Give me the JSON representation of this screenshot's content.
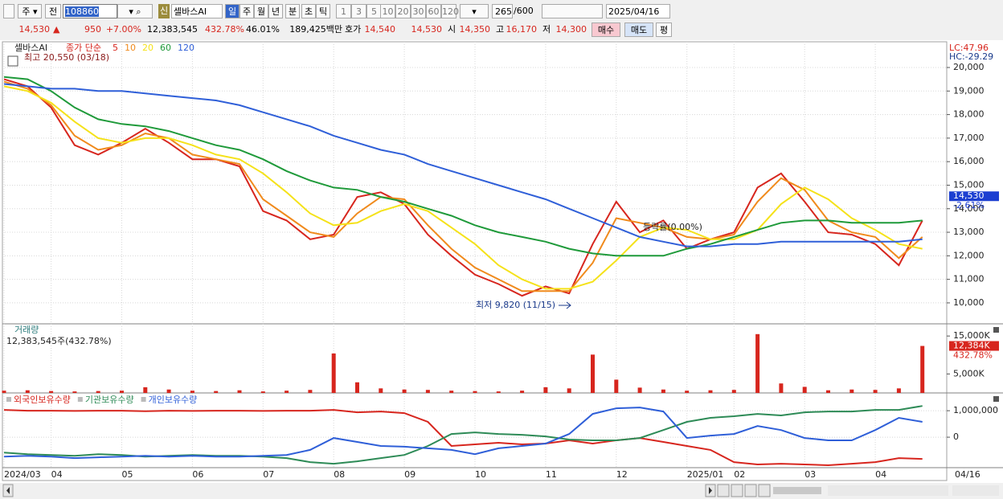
{
  "toolbar": {
    "market": "주",
    "scope": "전",
    "code": "108860",
    "flag": "신",
    "name": "셀바스AI",
    "periods": [
      "일",
      "주",
      "월",
      "년",
      "분",
      "초",
      "틱"
    ],
    "intervals": [
      "1",
      "3",
      "5",
      "10",
      "20",
      "30",
      "60",
      "120"
    ],
    "count": "265",
    "max": "/600",
    "date": "2025/04/16"
  },
  "quote": {
    "price": "14,530",
    "arrow": "▲",
    "change": "950",
    "change_pct": "+7.00%",
    "volume": "12,383,545",
    "volume_ratio": "432.78%",
    "turnover": "46.01%",
    "amount": "189,425백만",
    "ask_label": "호가",
    "ask": "14,540",
    "bid": "14,530",
    "open_label": "시",
    "open": "14,350",
    "high_label": "고",
    "high": "16,170",
    "low_label": "저",
    "low": "14,300",
    "buy": "매수",
    "sell": "매도",
    "avg": "평"
  },
  "chart_data": [
    {
      "type": "line",
      "title": "셀바스AI",
      "ma_label": "종가 단순",
      "high_label": "최고 20,550 (03/18)",
      "low_label": "최저 9,820 (11/15)",
      "change_label": "등락률(0.00%)",
      "lc_label": "LC:47.96",
      "hc_label": "HC:-29.29",
      "current": {
        "value": 14530,
        "label": "14,530"
      },
      "current_change": "-2.61%",
      "ylim": [
        9110,
        20990
      ],
      "yticks": [
        {
          "value": 10000,
          "label": "10,000"
        },
        {
          "value": 11000,
          "label": "11,000"
        },
        {
          "value": 12000,
          "label": "12,000"
        },
        {
          "value": 13000,
          "label": "13,000"
        },
        {
          "value": 14000,
          "label": "14,000"
        },
        {
          "value": 15000,
          "label": "15,000"
        },
        {
          "value": 16000,
          "label": "16,000"
        },
        {
          "value": 17000,
          "label": "17,000"
        },
        {
          "value": 18000,
          "label": "18,000"
        },
        {
          "value": 19000,
          "label": "19,000"
        },
        {
          "value": 20000,
          "label": "20,000"
        }
      ],
      "grid": true,
      "series": [
        {
          "name": "5",
          "color": "#d7261e",
          "values": [
            19500,
            19200,
            18300,
            16700,
            16300,
            16800,
            17400,
            16800,
            16100,
            16100,
            15800,
            13900,
            13500,
            12700,
            12900,
            14500,
            14700,
            14200,
            12900,
            12000,
            11200,
            10800,
            10300,
            10700,
            10400,
            12500,
            14300,
            13000,
            13500,
            12300,
            12700,
            13000,
            14900,
            15500,
            14300,
            13000,
            12900,
            12500,
            11600,
            13500
          ]
        },
        {
          "name": "10",
          "color": "#f08a1c",
          "values": [
            19400,
            19100,
            18400,
            17100,
            16500,
            16700,
            17200,
            17000,
            16300,
            16100,
            15900,
            14400,
            13700,
            13000,
            12800,
            13800,
            14500,
            14400,
            13300,
            12300,
            11500,
            11000,
            10500,
            10500,
            10500,
            11700,
            13600,
            13400,
            13200,
            12800,
            12700,
            12900,
            14300,
            15300,
            14800,
            13500,
            13000,
            12800,
            11900,
            12800
          ]
        },
        {
          "name": "20",
          "color": "#f5e21a",
          "values": [
            19200,
            19000,
            18500,
            17700,
            17000,
            16800,
            17000,
            17000,
            16700,
            16300,
            16100,
            15500,
            14700,
            13800,
            13300,
            13400,
            13900,
            14200,
            13900,
            13200,
            12500,
            11600,
            11000,
            10600,
            10600,
            10900,
            11800,
            12800,
            13200,
            13100,
            12700,
            12700,
            13100,
            14200,
            14900,
            14400,
            13600,
            13100,
            12500,
            12300
          ]
        },
        {
          "name": "60",
          "color": "#1f9a3a",
          "values": [
            19600,
            19500,
            19000,
            18300,
            17800,
            17600,
            17500,
            17300,
            17000,
            16700,
            16500,
            16100,
            15600,
            15200,
            14900,
            14800,
            14500,
            14300,
            14000,
            13700,
            13300,
            13000,
            12800,
            12600,
            12300,
            12100,
            12000,
            12000,
            12000,
            12300,
            12500,
            12800,
            13100,
            13400,
            13500,
            13500,
            13400,
            13400,
            13400,
            13500
          ]
        },
        {
          "name": "120",
          "color": "#2f5fd8",
          "values": [
            19300,
            19200,
            19100,
            19100,
            19000,
            19000,
            18900,
            18800,
            18700,
            18600,
            18400,
            18100,
            17800,
            17500,
            17100,
            16800,
            16500,
            16300,
            15900,
            15600,
            15300,
            15000,
            14700,
            14400,
            14000,
            13600,
            13200,
            12800,
            12600,
            12400,
            12400,
            12500,
            12500,
            12600,
            12600,
            12600,
            12600,
            12600,
            12600,
            12700
          ]
        }
      ]
    },
    {
      "type": "bar",
      "title": "거래량",
      "info": "12,383,545주(432.78%)",
      "current": {
        "value": 12384,
        "label": "12,384K"
      },
      "current_ratio": "432.78%",
      "ylim": [
        0,
        18000
      ],
      "yticks": [
        {
          "value": 5000,
          "label": "5,000K"
        },
        {
          "value": 15000,
          "label": "15,000K"
        }
      ],
      "color": "#d7261e",
      "values": [
        600,
        700,
        500,
        400,
        500,
        600,
        1500,
        900,
        600,
        500,
        700,
        400,
        600,
        800,
        10400,
        2800,
        1200,
        900,
        800,
        600,
        500,
        400,
        600,
        1500,
        1200,
        10100,
        3500,
        1400,
        900,
        600,
        700,
        800,
        15500,
        2500,
        1600,
        700,
        900,
        800,
        1200,
        12384
      ]
    },
    {
      "type": "line",
      "end_label": "04/16",
      "categories": [
        "2024/03",
        null,
        "04",
        null,
        null,
        "05",
        null,
        null,
        "06",
        null,
        null,
        "07",
        null,
        null,
        "08",
        null,
        null,
        "09",
        null,
        null,
        "10",
        null,
        null,
        "11",
        null,
        null,
        "12",
        null,
        null,
        "2025/01",
        null,
        "02",
        null,
        null,
        "03",
        null,
        null,
        "04",
        null,
        null
      ],
      "ylim": [
        -1150000,
        1640000
      ],
      "yticks": [
        0,
        {
          "value": 1000000,
          "label": "1,000,000"
        }
      ],
      "grid": true,
      "series": [
        {
          "name": "외국인보유수량",
          "color": "#d7261e",
          "values": [
            1030000,
            1000000,
            1000000,
            990000,
            1000000,
            1000000,
            980000,
            1000000,
            990000,
            1000000,
            1000000,
            990000,
            1000000,
            1000000,
            1030000,
            940000,
            970000,
            910000,
            580000,
            -330000,
            -270000,
            -210000,
            -270000,
            -240000,
            -120000,
            -240000,
            -120000,
            -30000,
            -180000,
            -330000,
            -480000,
            -940000,
            -1030000,
            -1000000,
            -1030000,
            -1060000,
            -1000000,
            -940000,
            -790000,
            -820000
          ]
        },
        {
          "name": "기관보유수량",
          "color": "#2e8b57",
          "values": [
            -580000,
            -640000,
            -670000,
            -700000,
            -640000,
            -670000,
            -730000,
            -700000,
            -670000,
            -700000,
            -700000,
            -730000,
            -790000,
            -940000,
            -1000000,
            -910000,
            -790000,
            -670000,
            -330000,
            120000,
            180000,
            120000,
            90000,
            30000,
            -90000,
            -120000,
            -120000,
            -30000,
            270000,
            580000,
            730000,
            790000,
            880000,
            820000,
            940000,
            970000,
            970000,
            1030000,
            1030000,
            1180000
          ]
        },
        {
          "name": "개인보유수량",
          "color": "#2f5fd8",
          "values": [
            -730000,
            -700000,
            -730000,
            -790000,
            -760000,
            -730000,
            -700000,
            -730000,
            -700000,
            -730000,
            -730000,
            -700000,
            -670000,
            -480000,
            -30000,
            -180000,
            -330000,
            -360000,
            -420000,
            -480000,
            -640000,
            -420000,
            -330000,
            -240000,
            120000,
            880000,
            1090000,
            1120000,
            970000,
            -30000,
            60000,
            120000,
            420000,
            270000,
            -30000,
            -120000,
            -120000,
            270000,
            730000,
            580000
          ]
        }
      ]
    }
  ]
}
